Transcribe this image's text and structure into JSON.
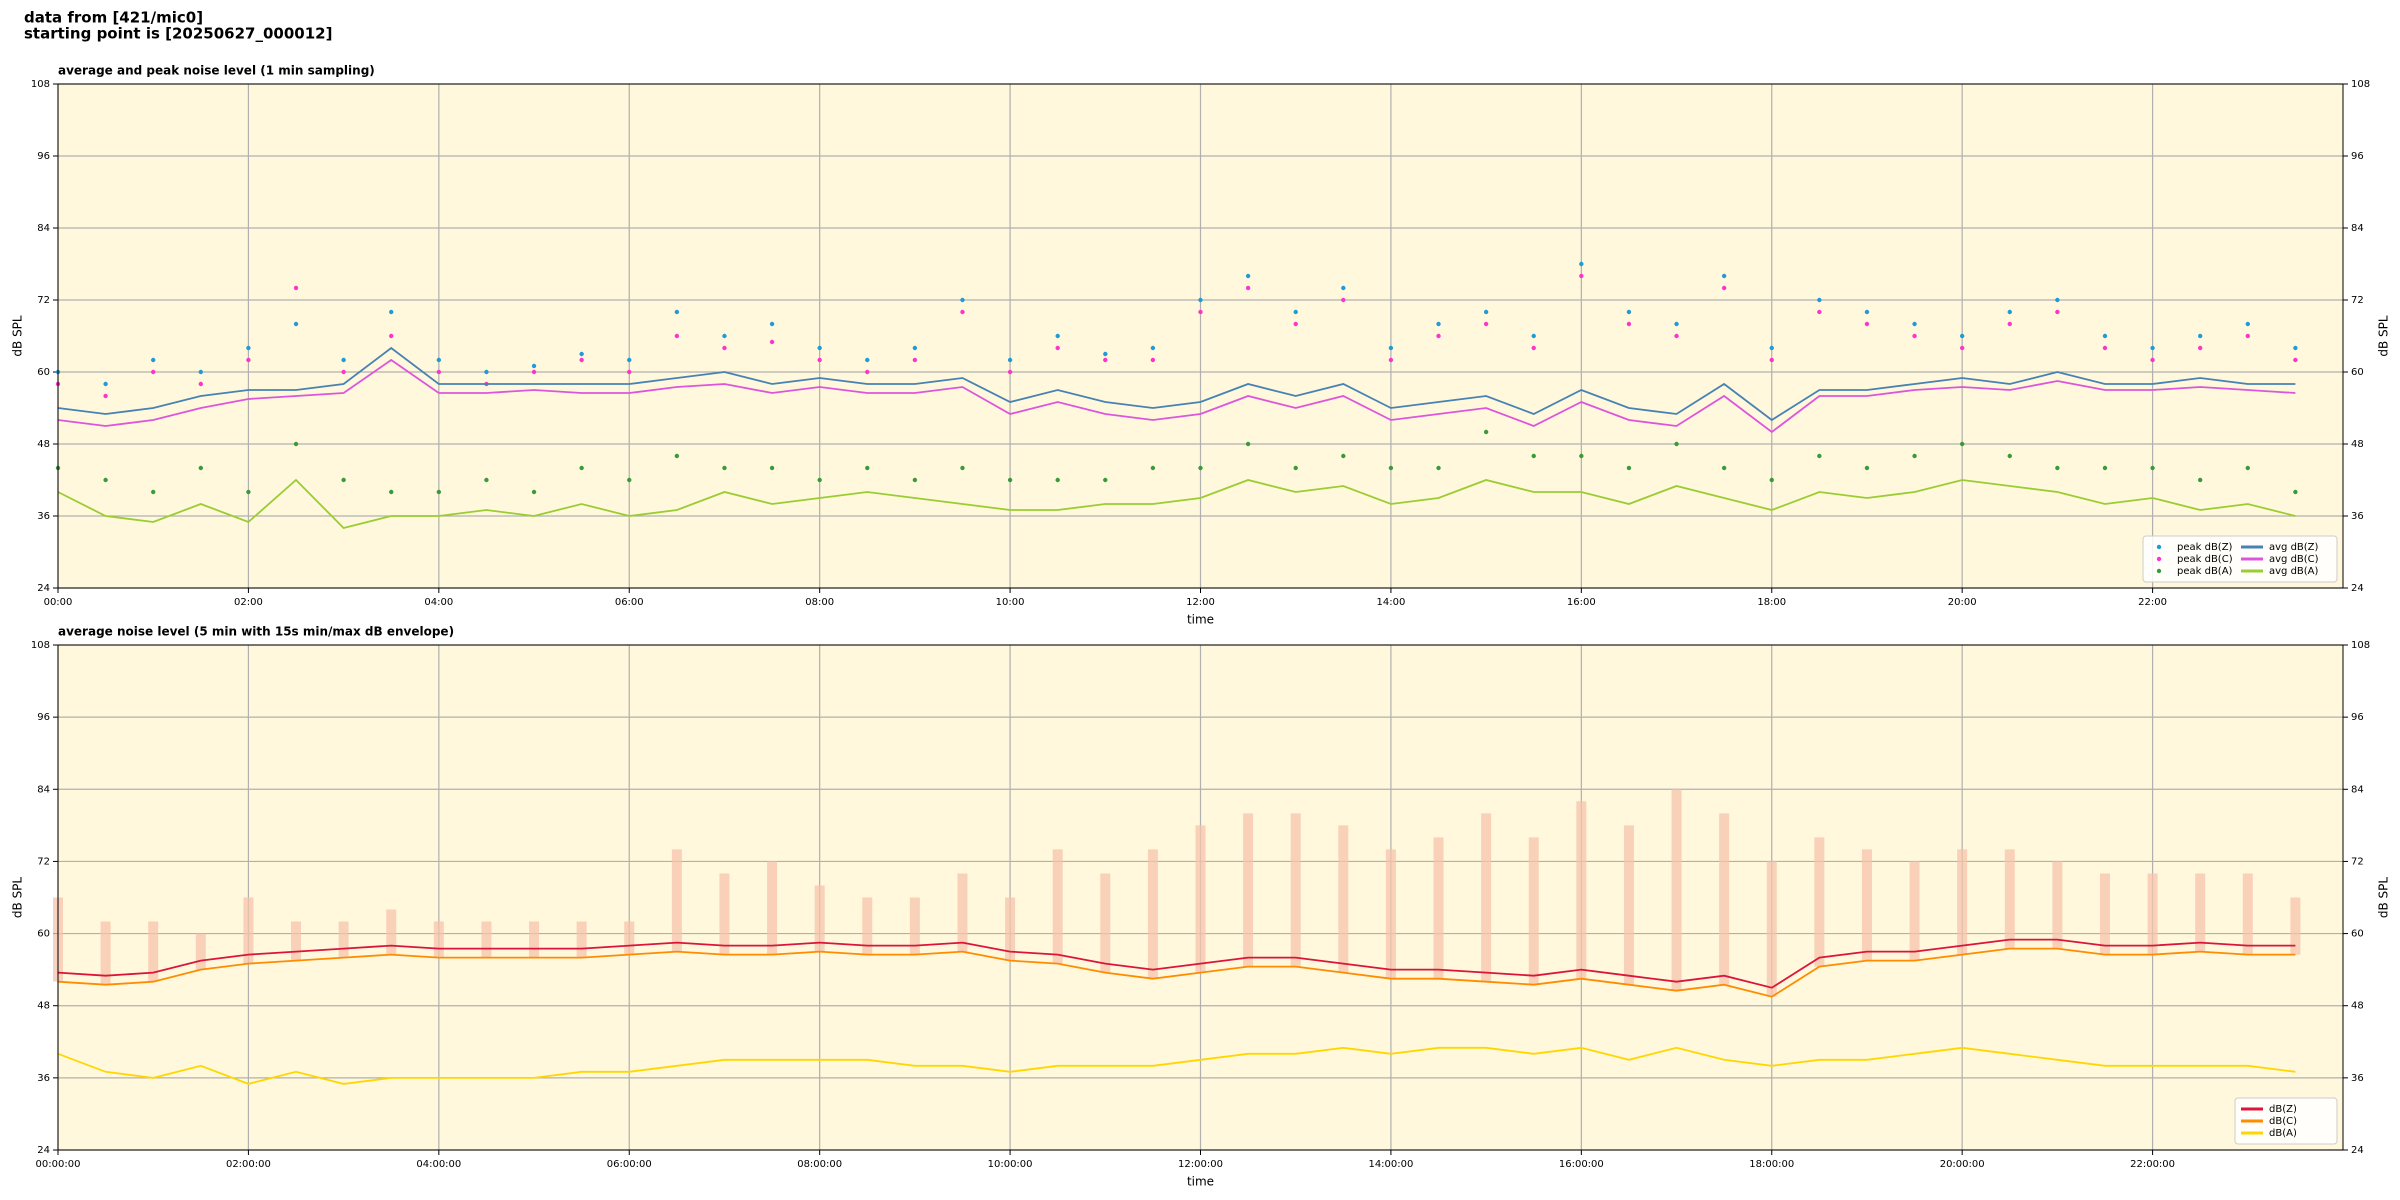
{
  "header": [
    "data from [421/mic0]",
    "starting point is [20250627_000012]"
  ],
  "chart_data": [
    {
      "type": "line",
      "title": "average and peak noise level (1 min sampling)",
      "xlabel": "time",
      "ylabel": "dB SPL",
      "xlim": [
        0,
        24
      ],
      "ylim": [
        24,
        108
      ],
      "yticks": [
        24,
        36,
        48,
        60,
        72,
        84,
        96,
        108
      ],
      "xticks": [
        {
          "value": 0,
          "label": "00:00"
        },
        {
          "value": 2,
          "label": "02:00"
        },
        {
          "value": 4,
          "label": "04:00"
        },
        {
          "value": 6,
          "label": "06:00"
        },
        {
          "value": 8,
          "label": "08:00"
        },
        {
          "value": 10,
          "label": "10:00"
        },
        {
          "value": 12,
          "label": "12:00"
        },
        {
          "value": 14,
          "label": "14:00"
        },
        {
          "value": 16,
          "label": "16:00"
        },
        {
          "value": 18,
          "label": "18:00"
        },
        {
          "value": 20,
          "label": "20:00"
        },
        {
          "value": 22,
          "label": "22:00"
        }
      ],
      "grid": true,
      "legend": "lower right",
      "legend_columns": 2,
      "background": "#fff8dc",
      "x": [
        0,
        0.5,
        1,
        1.5,
        2,
        2.5,
        3,
        3.5,
        4,
        4.5,
        5,
        5.5,
        6,
        6.5,
        7,
        7.5,
        8,
        8.5,
        9,
        9.5,
        10,
        10.5,
        11,
        11.5,
        12,
        12.5,
        13,
        13.5,
        14,
        14.5,
        15,
        15.5,
        16,
        16.5,
        17,
        17.5,
        18,
        18.5,
        19,
        19.5,
        20,
        20.5,
        21,
        21.5,
        22,
        22.5,
        23,
        23.5
      ],
      "series": [
        {
          "name": "peak dB(Z)",
          "type": "scatter",
          "color": "#1f9bd8",
          "values": [
            60,
            58,
            62,
            60,
            64,
            68,
            62,
            70,
            62,
            60,
            61,
            63,
            62,
            70,
            66,
            68,
            64,
            62,
            64,
            72,
            62,
            66,
            63,
            64,
            72,
            76,
            70,
            74,
            64,
            68,
            70,
            66,
            78,
            70,
            68,
            76,
            64,
            72,
            70,
            68,
            66,
            70,
            72,
            66,
            64,
            66,
            68,
            64
          ]
        },
        {
          "name": "peak dB(C)",
          "type": "scatter",
          "color": "#ff33cc",
          "values": [
            58,
            56,
            60,
            58,
            62,
            74,
            60,
            66,
            60,
            58,
            60,
            62,
            60,
            66,
            64,
            65,
            62,
            60,
            62,
            70,
            60,
            64,
            62,
            62,
            70,
            74,
            68,
            72,
            62,
            66,
            68,
            64,
            76,
            68,
            66,
            74,
            62,
            70,
            68,
            66,
            64,
            68,
            70,
            64,
            62,
            64,
            66,
            62
          ]
        },
        {
          "name": "peak dB(A)",
          "type": "scatter",
          "color": "#3a9a3a",
          "values": [
            44,
            42,
            40,
            44,
            40,
            48,
            42,
            40,
            40,
            42,
            40,
            44,
            42,
            46,
            44,
            44,
            42,
            44,
            42,
            44,
            42,
            42,
            42,
            44,
            44,
            48,
            44,
            46,
            44,
            44,
            50,
            46,
            46,
            44,
            48,
            44,
            42,
            46,
            44,
            46,
            48,
            46,
            44,
            44,
            44,
            42,
            44,
            40
          ]
        },
        {
          "name": "avg dB(Z)",
          "type": "line",
          "color": "#4682b4",
          "values": [
            54,
            53,
            54,
            56,
            57,
            57,
            58,
            64,
            58,
            58,
            58,
            58,
            58,
            59,
            60,
            58,
            59,
            58,
            58,
            59,
            55,
            57,
            55,
            54,
            55,
            58,
            56,
            58,
            54,
            55,
            56,
            53,
            57,
            54,
            53,
            58,
            52,
            57,
            57,
            58,
            59,
            58,
            60,
            58,
            58,
            59,
            58,
            58
          ]
        },
        {
          "name": "avg dB(C)",
          "type": "line",
          "color": "#dd55dd",
          "values": [
            52,
            51,
            52,
            54,
            55.5,
            56,
            56.5,
            62,
            56.5,
            56.5,
            57,
            56.5,
            56.5,
            57.5,
            58,
            56.5,
            57.5,
            56.5,
            56.5,
            57.5,
            53,
            55,
            53,
            52,
            53,
            56,
            54,
            56,
            52,
            53,
            54,
            51,
            55,
            52,
            51,
            56,
            50,
            56,
            56,
            57,
            57.5,
            57,
            58.5,
            57,
            57,
            57.5,
            57,
            56.5
          ]
        },
        {
          "name": "avg dB(A)",
          "type": "line",
          "color": "#9acd32",
          "values": [
            40,
            36,
            35,
            38,
            35,
            42,
            34,
            36,
            36,
            37,
            36,
            38,
            36,
            37,
            40,
            38,
            39,
            40,
            39,
            38,
            37,
            37,
            38,
            38,
            39,
            42,
            40,
            41,
            38,
            39,
            42,
            40,
            40,
            38,
            41,
            39,
            37,
            40,
            39,
            40,
            42,
            41,
            40,
            38,
            39,
            37,
            38,
            36
          ]
        }
      ]
    },
    {
      "type": "line",
      "title": "average noise level (5 min with 15s min/max dB envelope)",
      "xlabel": "time",
      "ylabel": "dB SPL",
      "xlim": [
        0,
        24
      ],
      "ylim": [
        24,
        108
      ],
      "yticks": [
        24,
        36,
        48,
        60,
        72,
        84,
        96,
        108
      ],
      "xticks": [
        {
          "value": 0,
          "label": "00:00:00"
        },
        {
          "value": 2,
          "label": "02:00:00"
        },
        {
          "value": 4,
          "label": "04:00:00"
        },
        {
          "value": 6,
          "label": "06:00:00"
        },
        {
          "value": 8,
          "label": "08:00:00"
        },
        {
          "value": 10,
          "label": "10:00:00"
        },
        {
          "value": 12,
          "label": "12:00:00"
        },
        {
          "value": 14,
          "label": "14:00:00"
        },
        {
          "value": 16,
          "label": "16:00:00"
        },
        {
          "value": 18,
          "label": "18:00:00"
        },
        {
          "value": 20,
          "label": "20:00:00"
        },
        {
          "value": 22,
          "label": "22:00:00"
        }
      ],
      "grid": true,
      "legend": "lower right",
      "legend_columns": 1,
      "background": "#fff8dc",
      "x": [
        0,
        0.5,
        1,
        1.5,
        2,
        2.5,
        3,
        3.5,
        4,
        4.5,
        5,
        5.5,
        6,
        6.5,
        7,
        7.5,
        8,
        8.5,
        9,
        9.5,
        10,
        10.5,
        11,
        11.5,
        12,
        12.5,
        13,
        13.5,
        14,
        14.5,
        15,
        15.5,
        16,
        16.5,
        17,
        17.5,
        18,
        18.5,
        19,
        19.5,
        20,
        20.5,
        21,
        21.5,
        22,
        22.5,
        23,
        23.5
      ],
      "envelope": {
        "color": "#f6c4ac",
        "values": [
          66,
          62,
          62,
          60,
          66,
          62,
          62,
          64,
          62,
          62,
          62,
          62,
          62,
          74,
          70,
          72,
          68,
          66,
          66,
          70,
          66,
          74,
          70,
          74,
          78,
          80,
          80,
          78,
          74,
          76,
          80,
          76,
          82,
          78,
          84,
          80,
          72,
          76,
          74,
          72,
          74,
          74,
          72,
          70,
          70,
          70,
          70,
          66
        ]
      },
      "series": [
        {
          "name": "dB(Z)",
          "type": "line",
          "color": "#dc143c",
          "values": [
            53.5,
            53,
            53.5,
            55.5,
            56.5,
            57,
            57.5,
            58,
            57.5,
            57.5,
            57.5,
            57.5,
            58,
            58.5,
            58,
            58,
            58.5,
            58,
            58,
            58.5,
            57,
            56.5,
            55,
            54,
            55,
            56,
            56,
            55,
            54,
            54,
            53.5,
            53,
            54,
            53,
            52,
            53,
            51,
            56,
            57,
            57,
            58,
            59,
            59,
            58,
            58,
            58.5,
            58,
            58
          ]
        },
        {
          "name": "dB(C)",
          "type": "line",
          "color": "#ff8c00",
          "values": [
            52,
            51.5,
            52,
            54,
            55,
            55.5,
            56,
            56.5,
            56,
            56,
            56,
            56,
            56.5,
            57,
            56.5,
            56.5,
            57,
            56.5,
            56.5,
            57,
            55.5,
            55,
            53.5,
            52.5,
            53.5,
            54.5,
            54.5,
            53.5,
            52.5,
            52.5,
            52,
            51.5,
            52.5,
            51.5,
            50.5,
            51.5,
            49.5,
            54.5,
            55.5,
            55.5,
            56.5,
            57.5,
            57.5,
            56.5,
            56.5,
            57,
            56.5,
            56.5
          ]
        },
        {
          "name": "dB(A)",
          "type": "line",
          "color": "#ffd700",
          "values": [
            40,
            37,
            36,
            38,
            35,
            37,
            35,
            36,
            36,
            36,
            36,
            37,
            37,
            38,
            39,
            39,
            39,
            39,
            38,
            38,
            37,
            38,
            38,
            38,
            39,
            40,
            40,
            41,
            40,
            41,
            41,
            40,
            41,
            39,
            41,
            39,
            38,
            39,
            39,
            40,
            41,
            40,
            39,
            38,
            38,
            38,
            38,
            37
          ]
        }
      ]
    }
  ]
}
